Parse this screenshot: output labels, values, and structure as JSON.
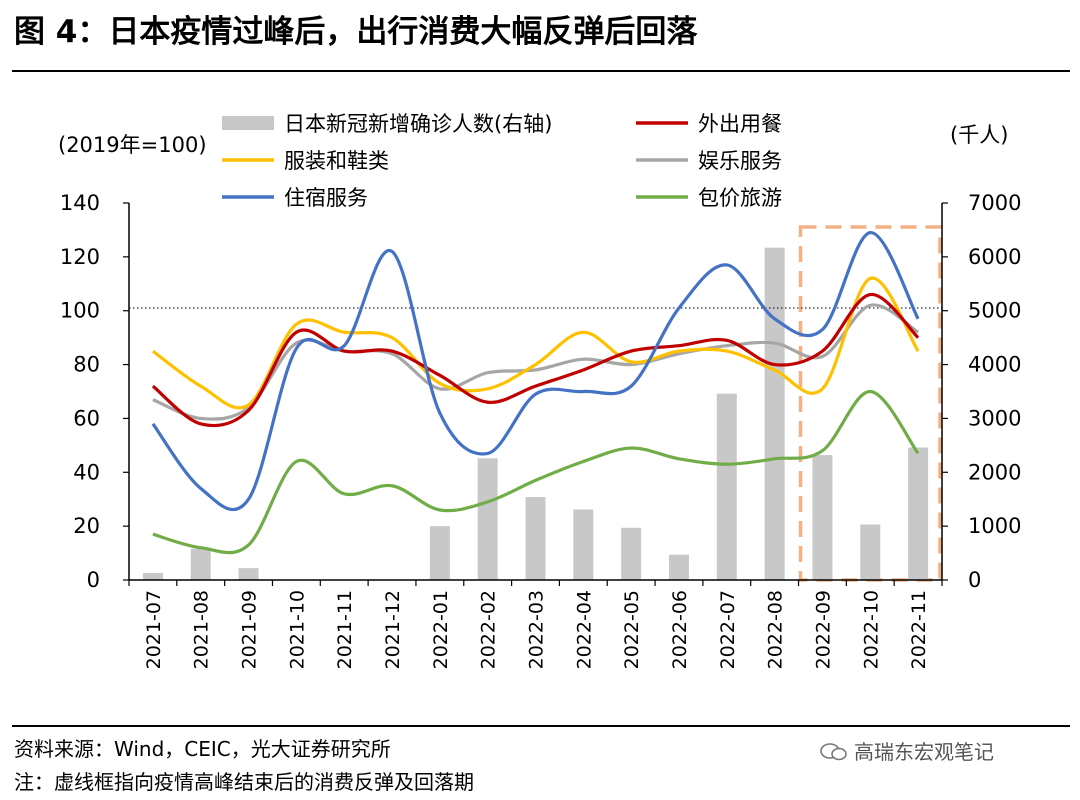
{
  "title": "图 4：日本疫情过峰后，出行消费大幅反弹后回落",
  "footer": {
    "source": "资料来源：Wind，CEIC，光大证券研究所",
    "note": "注：虚线框指向疫情高峰结束后的消费反弹及回落期",
    "watermark": "高瑞东宏观笔记"
  },
  "chart_data": {
    "type": "bar+line",
    "left_axis_label": "(2019年=100)",
    "right_axis_label": "(千人)",
    "ylim_left": [
      0,
      140
    ],
    "yticks_left": [
      0,
      20,
      40,
      60,
      80,
      100,
      120,
      140
    ],
    "ylim_right": [
      0,
      7000
    ],
    "yticks_right": [
      0,
      1000,
      2000,
      3000,
      4000,
      5000,
      6000,
      7000
    ],
    "categories": [
      "2021-07",
      "2021-08",
      "2021-09",
      "2021-10",
      "2021-11",
      "2021-12",
      "2022-01",
      "2022-02",
      "2022-03",
      "2022-04",
      "2022-05",
      "2022-06",
      "2022-07",
      "2022-08",
      "2022-09",
      "2022-10",
      "2022-11"
    ],
    "reference_line": 101,
    "highlight_range": [
      "2022-09",
      "2022-11"
    ],
    "bar_series": {
      "name": "日本新冠新增确诊人数(右轴)",
      "color": "#c8c8c8",
      "axis": "right",
      "values": [
        130,
        580,
        220,
        0,
        0,
        0,
        1000,
        2260,
        1540,
        1310,
        970,
        470,
        3460,
        6170,
        2320,
        1030,
        2460
      ]
    },
    "line_series": [
      {
        "name": "外出用餐",
        "color": "#c00000",
        "values": [
          72,
          58,
          63,
          92,
          85,
          85,
          76,
          66,
          72,
          78,
          85,
          87,
          89,
          80,
          85,
          106,
          90
        ]
      },
      {
        "name": "服装和鞋类",
        "color": "#ffc000",
        "values": [
          85,
          72,
          65,
          95,
          92,
          90,
          73,
          71,
          80,
          92,
          81,
          85,
          85,
          78,
          71,
          112,
          85
        ]
      },
      {
        "name": "娱乐服务",
        "color": "#a6a6a6",
        "values": [
          67,
          60,
          64,
          88,
          85,
          84,
          71,
          77,
          78,
          82,
          80,
          84,
          87,
          88,
          83,
          102,
          92
        ]
      },
      {
        "name": "住宿服务",
        "color": "#4472c4",
        "values": [
          58,
          34,
          30,
          86,
          87,
          122,
          62,
          47,
          69,
          70,
          72,
          101,
          117,
          97,
          93,
          129,
          97
        ]
      },
      {
        "name": "包价旅游",
        "color": "#70ad47",
        "values": [
          17,
          12,
          13,
          44,
          32,
          35,
          26,
          29,
          37,
          44,
          49,
          45,
          43,
          45,
          48,
          70,
          47
        ]
      }
    ]
  }
}
